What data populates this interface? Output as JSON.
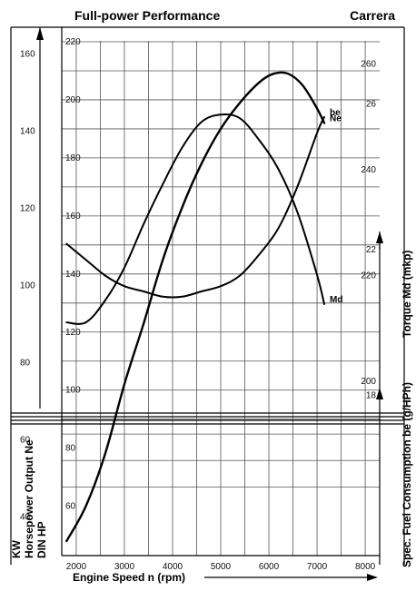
{
  "chart_data": {
    "type": "line",
    "title": "Full-power Performance",
    "subtitle": "Carrera",
    "xlabel": "Engine Speed n (rpm)",
    "x_ticks": [
      2000,
      3000,
      4000,
      5000,
      6000,
      7000,
      8000
    ],
    "xlim": [
      1700,
      8300
    ],
    "axes": {
      "hp": {
        "label": "Horsepower Output Ne",
        "ticks": [
          60,
          80,
          100,
          120,
          140,
          160,
          180,
          200,
          220
        ],
        "ylim": [
          43,
          225
        ]
      },
      "kw": {
        "label": "KW",
        "ticks": [
          40,
          60,
          80,
          100,
          120,
          140,
          160
        ],
        "ylim": [
          30,
          167
        ]
      },
      "din": {
        "label": "DIN HP"
      },
      "torque": {
        "label": "Torque Md (mkp)",
        "ticks": [
          18,
          22,
          26
        ],
        "ylim": [
          13.6,
          28.1
        ]
      },
      "fuel": {
        "label": "Spec. Fuel Consumption be (g/HPh)",
        "ticks": [
          200,
          220,
          240,
          260
        ],
        "ylim": [
          167,
          267
        ]
      }
    },
    "series": [
      {
        "name": "Ne",
        "axis": "hp",
        "x": [
          1800,
          2200,
          2600,
          3000,
          3400,
          3800,
          4200,
          4600,
          5000,
          5400,
          5800,
          6100,
          6400,
          6700,
          7000,
          7150
        ],
        "y": [
          48,
          60,
          78,
          102,
          123,
          145,
          163,
          178,
          190,
          199,
          206,
          209,
          209,
          205,
          197,
          192
        ]
      },
      {
        "name": "Md",
        "axis": "torque",
        "x": [
          1800,
          2200,
          2600,
          3000,
          3400,
          3800,
          4200,
          4600,
          5000,
          5400,
          5800,
          6200,
          6600,
          7000,
          7150
        ],
        "y": [
          20.0,
          20.0,
          20.6,
          21.5,
          22.7,
          23.8,
          24.8,
          25.5,
          25.7,
          25.6,
          25.0,
          24.2,
          23.0,
          21.3,
          20.5
        ]
      },
      {
        "name": "be",
        "axis": "fuel",
        "x": [
          1800,
          2200,
          2600,
          3000,
          3400,
          3800,
          4200,
          4600,
          5000,
          5400,
          5800,
          6200,
          6600,
          7000,
          7150
        ],
        "y": [
          226,
          223,
          220,
          218,
          217,
          216,
          216,
          217,
          218,
          220,
          224,
          229,
          237,
          247,
          250
        ]
      }
    ],
    "grid": true
  }
}
